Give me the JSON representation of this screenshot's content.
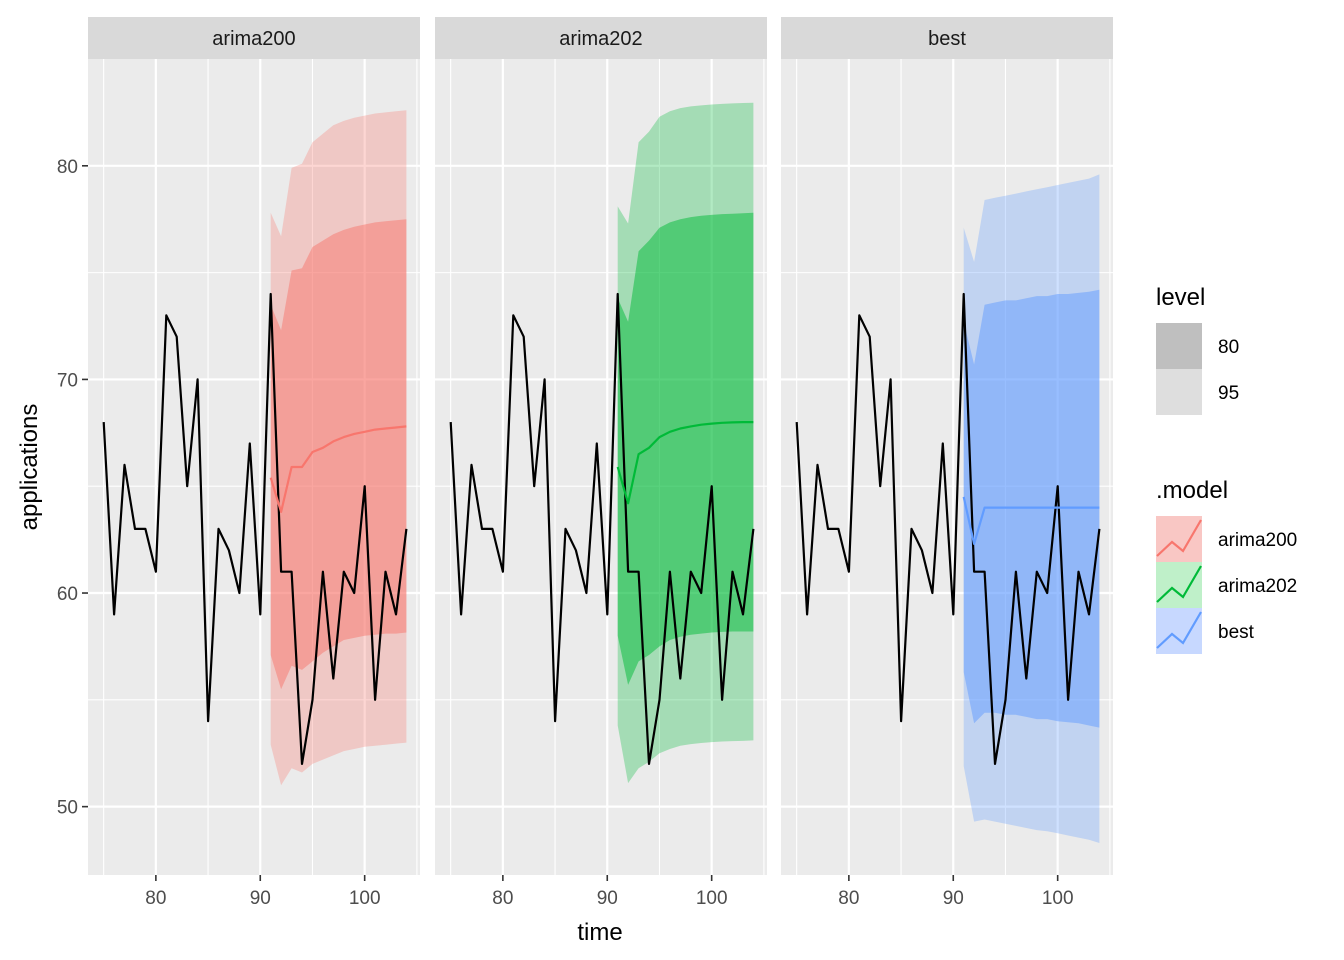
{
  "chart_data": {
    "type": "line",
    "xlabel": "time",
    "ylabel": "applications",
    "xlim": [
      73.5,
      105.3
    ],
    "ylim": [
      46.8,
      85
    ],
    "x_ticks": [
      80,
      90,
      100
    ],
    "x_tick_labels": [
      "80",
      "90",
      "100"
    ],
    "y_ticks": [
      50,
      60,
      70,
      80
    ],
    "y_tick_labels": [
      "50",
      "60",
      "70",
      "80"
    ],
    "observed": {
      "x": [
        75,
        76,
        77,
        78,
        79,
        80,
        81,
        82,
        83,
        84,
        85,
        86,
        87,
        88,
        89,
        90,
        91,
        92,
        93,
        94,
        95,
        96,
        97,
        98,
        99,
        100,
        101,
        102,
        103,
        104
      ],
      "y": [
        68,
        59,
        66,
        63,
        63,
        61,
        73,
        72,
        65,
        70,
        54,
        63,
        62,
        60,
        67,
        59,
        74,
        61,
        61,
        52,
        55,
        61,
        56,
        61,
        60,
        65,
        55,
        61,
        59,
        63
      ],
      "color": "#000000"
    },
    "forecast_x": [
      91,
      92,
      93,
      94,
      95,
      96,
      97,
      98,
      99,
      100,
      101,
      102,
      103,
      104
    ],
    "panels": [
      {
        "name": "arima200",
        "color": "#F8766D",
        "mean": [
          65.4,
          63.8,
          65.9,
          65.9,
          66.6,
          66.8,
          67.1,
          67.3,
          67.45,
          67.55,
          67.65,
          67.7,
          67.75,
          67.8
        ],
        "lo80": [
          57.1,
          55.5,
          56.6,
          56.4,
          56.8,
          57.2,
          57.5,
          57.8,
          57.9,
          58.0,
          58.05,
          58.1,
          58.1,
          58.15
        ],
        "hi80": [
          73.5,
          72.3,
          75.1,
          75.2,
          76.2,
          76.5,
          76.8,
          77.0,
          77.15,
          77.25,
          77.35,
          77.4,
          77.45,
          77.5
        ],
        "lo95": [
          52.9,
          51.0,
          51.8,
          51.6,
          52.0,
          52.2,
          52.4,
          52.6,
          52.7,
          52.8,
          52.85,
          52.9,
          52.95,
          53.0
        ],
        "hi95": [
          77.8,
          76.7,
          79.9,
          80.1,
          81.1,
          81.5,
          81.9,
          82.1,
          82.25,
          82.35,
          82.45,
          82.5,
          82.55,
          82.6
        ]
      },
      {
        "name": "arima202",
        "color": "#00BA38",
        "mean": [
          65.9,
          64.2,
          66.5,
          66.8,
          67.3,
          67.55,
          67.7,
          67.8,
          67.88,
          67.93,
          67.97,
          67.99,
          68.0,
          68.0
        ],
        "lo80": [
          58.0,
          55.7,
          56.8,
          57.1,
          57.5,
          57.8,
          57.95,
          58.05,
          58.1,
          58.15,
          58.18,
          58.2,
          58.2,
          58.2
        ],
        "hi80": [
          73.8,
          72.7,
          76.0,
          76.5,
          77.1,
          77.35,
          77.5,
          77.6,
          77.66,
          77.7,
          77.74,
          77.76,
          77.78,
          77.8
        ],
        "lo95": [
          53.8,
          51.1,
          51.8,
          52.1,
          52.5,
          52.7,
          52.85,
          52.93,
          52.98,
          53.02,
          53.05,
          53.07,
          53.08,
          53.1
        ],
        "hi95": [
          78.1,
          77.3,
          81.1,
          81.6,
          82.3,
          82.55,
          82.7,
          82.78,
          82.83,
          82.87,
          82.9,
          82.92,
          82.94,
          82.95
        ]
      },
      {
        "name": "best",
        "color": "#619CFF",
        "mean": [
          64.5,
          62.3,
          64.0,
          64.0,
          64.0,
          64.0,
          64.0,
          64.0,
          64.0,
          64.0,
          64.0,
          64.0,
          64.0,
          64.0
        ],
        "lo80": [
          56.3,
          53.9,
          54.4,
          54.4,
          54.3,
          54.3,
          54.2,
          54.1,
          54.1,
          54.0,
          53.95,
          53.9,
          53.8,
          53.7
        ],
        "hi80": [
          72.7,
          70.7,
          73.5,
          73.6,
          73.7,
          73.7,
          73.8,
          73.9,
          73.9,
          74.0,
          74.0,
          74.05,
          74.1,
          74.2
        ],
        "lo95": [
          51.9,
          49.3,
          49.4,
          49.3,
          49.2,
          49.1,
          49.0,
          48.9,
          48.85,
          48.75,
          48.65,
          48.55,
          48.45,
          48.3
        ],
        "hi95": [
          77.1,
          75.5,
          78.4,
          78.5,
          78.6,
          78.7,
          78.8,
          78.9,
          79.0,
          79.1,
          79.2,
          79.3,
          79.4,
          79.6
        ]
      }
    ],
    "legend": {
      "position": "right",
      "level_title": "level",
      "levels": [
        {
          "label": "80",
          "color": "#bfbfbf"
        },
        {
          "label": "95",
          "color": "#dedede"
        }
      ],
      "model_title": ".model",
      "models": [
        {
          "label": "arima200",
          "color": "#F8766D",
          "fill": "#F9C7C4"
        },
        {
          "label": "arima202",
          "color": "#00BA38",
          "fill": "#BFF0C9"
        },
        {
          "label": "best",
          "color": "#619CFF",
          "fill": "#C7D8FF"
        }
      ]
    }
  }
}
